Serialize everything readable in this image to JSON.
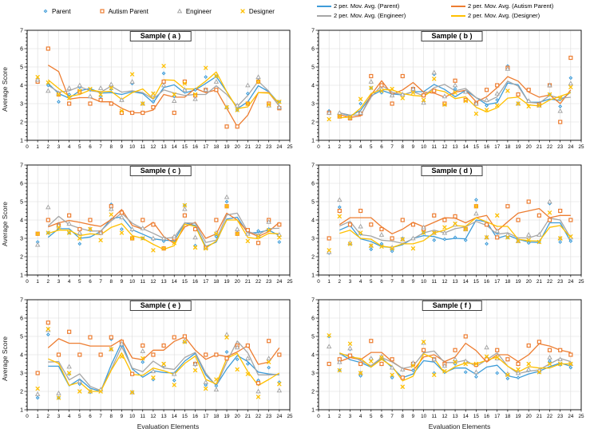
{
  "colors": {
    "parent": "#3E9CD9",
    "autism_parent": "#ED7D31",
    "engineer": "#A6A6A6",
    "designer": "#FFC000",
    "gridline": "#DCDCDC",
    "axis": "#000000"
  },
  "legend": {
    "markers": [
      {
        "id": "parent",
        "label": "Parent",
        "marker": "diamond"
      },
      {
        "id": "autism_parent",
        "label": "Autism Parent",
        "marker": "square"
      },
      {
        "id": "engineer",
        "label": "Engineer",
        "marker": "triangle"
      },
      {
        "id": "designer",
        "label": "Designer",
        "marker": "x"
      }
    ],
    "lines": [
      {
        "id": "parent",
        "label": "2 per. Mov. Avg. (Parent)"
      },
      {
        "id": "autism_parent",
        "label": "2 per. Mov. Avg. (Autism Parent)"
      },
      {
        "id": "engineer",
        "label": "2 per. Mov. Avg. (Engineer)"
      },
      {
        "id": "designer",
        "label": "2 per. Mov. Avg. (Designer)"
      }
    ]
  },
  "chart_data": {
    "type": "scatter",
    "trendline": "2-period moving average per series",
    "moving_average_window": 2,
    "xlabel": "Evaluation Elements",
    "ylabel": "Average Score",
    "xlim": [
      0,
      25
    ],
    "ylim": [
      1,
      7
    ],
    "xticks": [
      0,
      1,
      2,
      3,
      4,
      5,
      6,
      7,
      8,
      9,
      10,
      11,
      12,
      13,
      14,
      15,
      16,
      17,
      18,
      19,
      20,
      21,
      22,
      23,
      24,
      25
    ],
    "yticks": [
      1,
      2,
      3,
      4,
      5,
      6,
      7
    ],
    "x": [
      1,
      2,
      3,
      4,
      5,
      6,
      7,
      8,
      9,
      10,
      11,
      12,
      13,
      14,
      15,
      16,
      17,
      18,
      19,
      20,
      21,
      22,
      23,
      24
    ],
    "subplots": [
      {
        "title": "Sample ( a )",
        "series": {
          "parent": [
            4.2,
            4.0,
            3.1,
            3.5,
            3.9,
            3.75,
            3.4,
            3.8,
            3.2,
            4.1,
            3.0,
            3.1,
            4.65,
            3.4,
            3.75,
            3.75,
            4.45,
            4.5,
            2.8,
            2.65,
            3.55,
            4.4,
            2.9,
            3.1
          ],
          "autism_parent": [
            4.2,
            6.0,
            3.5,
            3.0,
            3.65,
            3.0,
            3.2,
            3.0,
            2.5,
            2.5,
            2.5,
            2.8,
            4.2,
            2.5,
            4.2,
            3.45,
            3.75,
            3.75,
            1.75,
            1.75,
            3.0,
            4.2,
            3.0,
            2.75
          ],
          "engineer": [
            4.3,
            3.7,
            3.55,
            3.85,
            4.0,
            3.4,
            3.85,
            4.05,
            3.2,
            4.2,
            3.0,
            3.5,
            4.0,
            3.15,
            3.75,
            3.25,
            3.75,
            4.2,
            2.8,
            2.9,
            4.0,
            4.45,
            2.9,
            2.8
          ],
          "designer": [
            4.45,
            4.15,
            3.5,
            3.3,
            3.7,
            3.8,
            3.5,
            3.85,
            2.6,
            4.6,
            3.0,
            3.55,
            5.05,
            3.5,
            4.1,
            3.5,
            4.95,
            4.5,
            2.8,
            2.65,
            3.0,
            4.2,
            2.95,
            3.1
          ]
        }
      },
      {
        "title": "Sample ( b )",
        "series": {
          "parent": [
            2.6,
            2.4,
            2.25,
            3.0,
            3.85,
            3.6,
            3.45,
            3.5,
            3.8,
            3.5,
            4.6,
            2.95,
            3.8,
            3.65,
            3.0,
            2.9,
            3.2,
            5.05,
            3.0,
            3.15,
            3.0,
            3.5,
            2.85,
            4.4
          ],
          "autism_parent": [
            2.5,
            2.3,
            2.2,
            2.45,
            4.5,
            4.0,
            3.0,
            4.5,
            3.8,
            3.45,
            3.7,
            3.0,
            4.25,
            3.2,
            3.0,
            3.75,
            4.0,
            4.95,
            3.5,
            3.75,
            2.95,
            4.0,
            2.0,
            5.5
          ],
          "engineer": [
            2.5,
            2.5,
            2.25,
            2.5,
            4.2,
            3.8,
            3.45,
            3.5,
            3.8,
            3.05,
            4.7,
            3.4,
            4.0,
            3.65,
            3.0,
            3.2,
            3.55,
            4.9,
            3.0,
            3.15,
            2.9,
            4.0,
            2.6,
            4.1
          ],
          "designer": [
            2.15,
            2.3,
            2.25,
            3.25,
            3.85,
            3.7,
            3.8,
            3.3,
            3.6,
            3.2,
            4.35,
            2.95,
            3.6,
            3.15,
            2.45,
            2.65,
            2.9,
            3.7,
            3.0,
            2.85,
            2.9,
            3.5,
            3.3,
            3.9
          ]
        }
      },
      {
        "title": "Sample ( c )",
        "series": {
          "parent": [
            2.8,
            3.3,
            3.75,
            3.3,
            2.7,
            3.45,
            3.3,
            4.85,
            3.5,
            3.45,
            3.0,
            2.95,
            2.85,
            2.9,
            4.8,
            2.6,
            2.5,
            3.1,
            5.0,
            3.3,
            3.25,
            3.4,
            3.5,
            2.8
          ],
          "autism_parent": [
            3.25,
            4.0,
            3.7,
            4.25,
            3.5,
            4.0,
            3.3,
            4.75,
            4.4,
            3.0,
            4.0,
            3.75,
            2.45,
            3.0,
            4.25,
            3.5,
            2.5,
            4.0,
            4.75,
            3.25,
            3.45,
            2.75,
            4.0,
            3.75
          ],
          "engineer": [
            2.65,
            4.7,
            3.7,
            3.8,
            3.3,
            3.5,
            3.3,
            4.6,
            4.15,
            3.5,
            3.55,
            3.0,
            3.0,
            3.1,
            4.6,
            3.05,
            2.5,
            3.3,
            5.25,
            3.5,
            3.25,
            3.15,
            3.9,
            3.2
          ],
          "designer": [
            3.25,
            3.3,
            3.6,
            3.3,
            3.0,
            3.5,
            2.9,
            4.3,
            3.3,
            3.0,
            3.0,
            2.35,
            2.45,
            2.75,
            4.8,
            2.5,
            2.45,
            3.25,
            4.75,
            3.25,
            2.85,
            3.1,
            3.45,
            3.05
          ]
        }
      },
      {
        "title": "Sample ( d )",
        "series": {
          "parent": [
            2.2,
            4.7,
            2.7,
            3.25,
            2.4,
            2.7,
            2.3,
            3.0,
            3.0,
            3.3,
            2.9,
            2.95,
            3.05,
            2.9,
            5.1,
            2.7,
            3.3,
            3.05,
            2.85,
            2.75,
            2.8,
            4.9,
            2.8,
            2.85
          ],
          "autism_parent": [
            3.0,
            4.5,
            3.75,
            4.5,
            3.75,
            3.5,
            3.0,
            4.0,
            3.75,
            3.5,
            4.25,
            4.0,
            4.2,
            3.5,
            4.75,
            3.75,
            3.05,
            4.75,
            4.0,
            5.0,
            4.25,
            4.0,
            4.5,
            4.0
          ],
          "engineer": [
            2.25,
            5.1,
            2.75,
            3.65,
            2.6,
            3.2,
            2.5,
            2.95,
            3.0,
            3.6,
            3.3,
            3.3,
            3.75,
            3.5,
            4.35,
            3.05,
            3.4,
            3.2,
            2.85,
            3.2,
            3.2,
            5.0,
            3.0,
            3.05
          ],
          "designer": [
            2.35,
            4.2,
            2.7,
            3.3,
            2.6,
            2.55,
            2.45,
            2.95,
            2.45,
            3.3,
            3.3,
            3.6,
            3.8,
            3.5,
            4.75,
            3.05,
            4.25,
            3.05,
            2.85,
            2.9,
            2.8,
            4.4,
            3.0,
            3.1
          ]
        }
      },
      {
        "title": "Sample ( e )",
        "series": {
          "parent": [
            1.65,
            5.1,
            1.65,
            2.95,
            2.4,
            1.95,
            2.05,
            4.85,
            4.5,
            1.95,
            3.6,
            2.65,
            3.4,
            2.6,
            4.7,
            3.45,
            2.35,
            2.3,
            4.15,
            3.75,
            3.5,
            2.6,
            3.3,
            2.5
          ],
          "autism_parent": [
            3.0,
            5.75,
            4.0,
            5.25,
            4.0,
            4.95,
            4.0,
            4.95,
            4.7,
            2.95,
            4.5,
            4.0,
            4.5,
            4.95,
            5.0,
            3.5,
            4.0,
            4.0,
            3.8,
            4.5,
            4.5,
            2.45,
            4.75,
            4.0
          ],
          "engineer": [
            1.85,
            5.35,
            1.9,
            3.35,
            2.55,
            2.0,
            2.1,
            4.3,
            4.6,
            1.95,
            4.2,
            3.1,
            3.45,
            2.95,
            4.75,
            3.5,
            2.5,
            2.1,
            5.1,
            4.4,
            3.8,
            2.0,
            3.8,
            2.05
          ],
          "designer": [
            2.15,
            5.4,
            1.65,
            3.0,
            2.0,
            2.0,
            2.0,
            4.3,
            3.9,
            1.95,
            3.8,
            2.75,
            3.5,
            2.35,
            4.7,
            3.15,
            2.15,
            2.65,
            4.95,
            3.2,
            2.95,
            1.7,
            3.6,
            2.4
          ]
        }
      },
      {
        "title": "Sample ( f )",
        "series": {
          "parent": [
            5.0,
            3.15,
            4.3,
            2.85,
            3.8,
            3.85,
            2.75,
            2.75,
            3.15,
            4.2,
            3.0,
            3.05,
            3.5,
            3.05,
            2.8,
            3.85,
            3.0,
            2.7,
            2.75,
            3.15,
            3.05,
            3.65,
            3.45,
            3.3
          ],
          "autism_parent": [
            3.5,
            3.75,
            3.95,
            3.5,
            4.75,
            3.5,
            3.75,
            2.75,
            3.5,
            4.25,
            3.75,
            3.5,
            4.25,
            5.0,
            3.45,
            3.75,
            4.25,
            3.75,
            3.5,
            4.5,
            4.7,
            4.25,
            4.25,
            4.0
          ],
          "engineer": [
            4.45,
            3.6,
            4.35,
            3.0,
            3.8,
            3.9,
            3.3,
            3.2,
            3.55,
            4.65,
            3.75,
            3.4,
            3.75,
            3.65,
            3.05,
            4.4,
            3.8,
            2.95,
            3.0,
            3.2,
            3.15,
            3.85,
            3.75,
            3.5
          ],
          "designer": [
            5.05,
            3.15,
            4.6,
            3.0,
            3.65,
            3.85,
            2.9,
            2.25,
            3.4,
            4.7,
            2.9,
            3.1,
            3.6,
            3.5,
            3.5,
            3.9,
            3.85,
            2.9,
            3.2,
            3.5,
            3.05,
            3.5,
            3.5,
            3.5
          ]
        }
      }
    ]
  }
}
